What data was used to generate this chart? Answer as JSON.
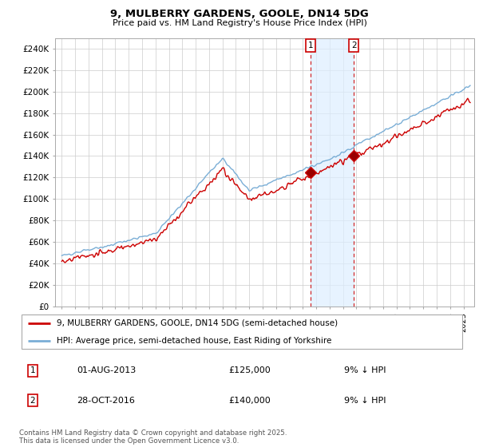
{
  "title": "9, MULBERRY GARDENS, GOOLE, DN14 5DG",
  "subtitle": "Price paid vs. HM Land Registry's House Price Index (HPI)",
  "ylim": [
    0,
    250000
  ],
  "yticks": [
    0,
    20000,
    40000,
    60000,
    80000,
    100000,
    120000,
    140000,
    160000,
    180000,
    200000,
    220000,
    240000
  ],
  "legend_line1": "9, MULBERRY GARDENS, GOOLE, DN14 5DG (semi-detached house)",
  "legend_line2": "HPI: Average price, semi-detached house, East Riding of Yorkshire",
  "marker1_date": "01-AUG-2013",
  "marker1_price": "£125,000",
  "marker1_hpi": "9% ↓ HPI",
  "marker1_year": 2013.58,
  "marker1_val": 125000,
  "marker2_date": "28-OCT-2016",
  "marker2_price": "£140,000",
  "marker2_hpi": "9% ↓ HPI",
  "marker2_year": 2016.82,
  "marker2_val": 140000,
  "copyright": "Contains HM Land Registry data © Crown copyright and database right 2025.\nThis data is licensed under the Open Government Licence v3.0.",
  "line_color_red": "#cc0000",
  "line_color_blue": "#7aaed6",
  "fill_color": "#ddeeff",
  "grid_color": "#cccccc"
}
